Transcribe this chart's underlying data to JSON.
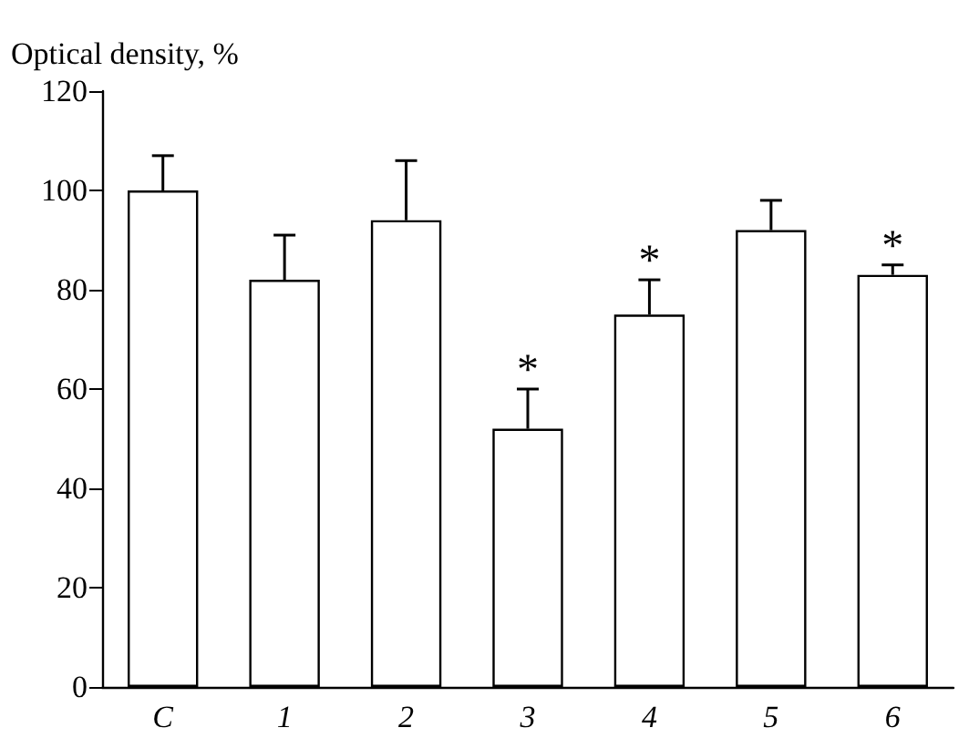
{
  "chart_data": {
    "type": "bar",
    "ylabel": "Optical density, %",
    "categories": [
      "C",
      "1",
      "2",
      "3",
      "4",
      "5",
      "6"
    ],
    "values": [
      100,
      82,
      94,
      52,
      75,
      92,
      83
    ],
    "errors": [
      [
        100,
        107
      ],
      [
        82,
        91
      ],
      [
        94,
        106
      ],
      [
        52,
        60
      ],
      [
        75,
        82
      ],
      [
        92,
        98
      ],
      [
        83,
        85
      ]
    ],
    "color": "#ffffff",
    "ylim": [
      0,
      120
    ],
    "yticks": [
      0,
      20,
      40,
      60,
      80,
      100,
      120
    ],
    "grid": false,
    "annotations": [
      {
        "text": "*",
        "x": "3",
        "y": 60
      },
      {
        "text": "*",
        "x": "4",
        "y": 82
      },
      {
        "text": "*",
        "x": "6",
        "y": 85
      }
    ]
  }
}
